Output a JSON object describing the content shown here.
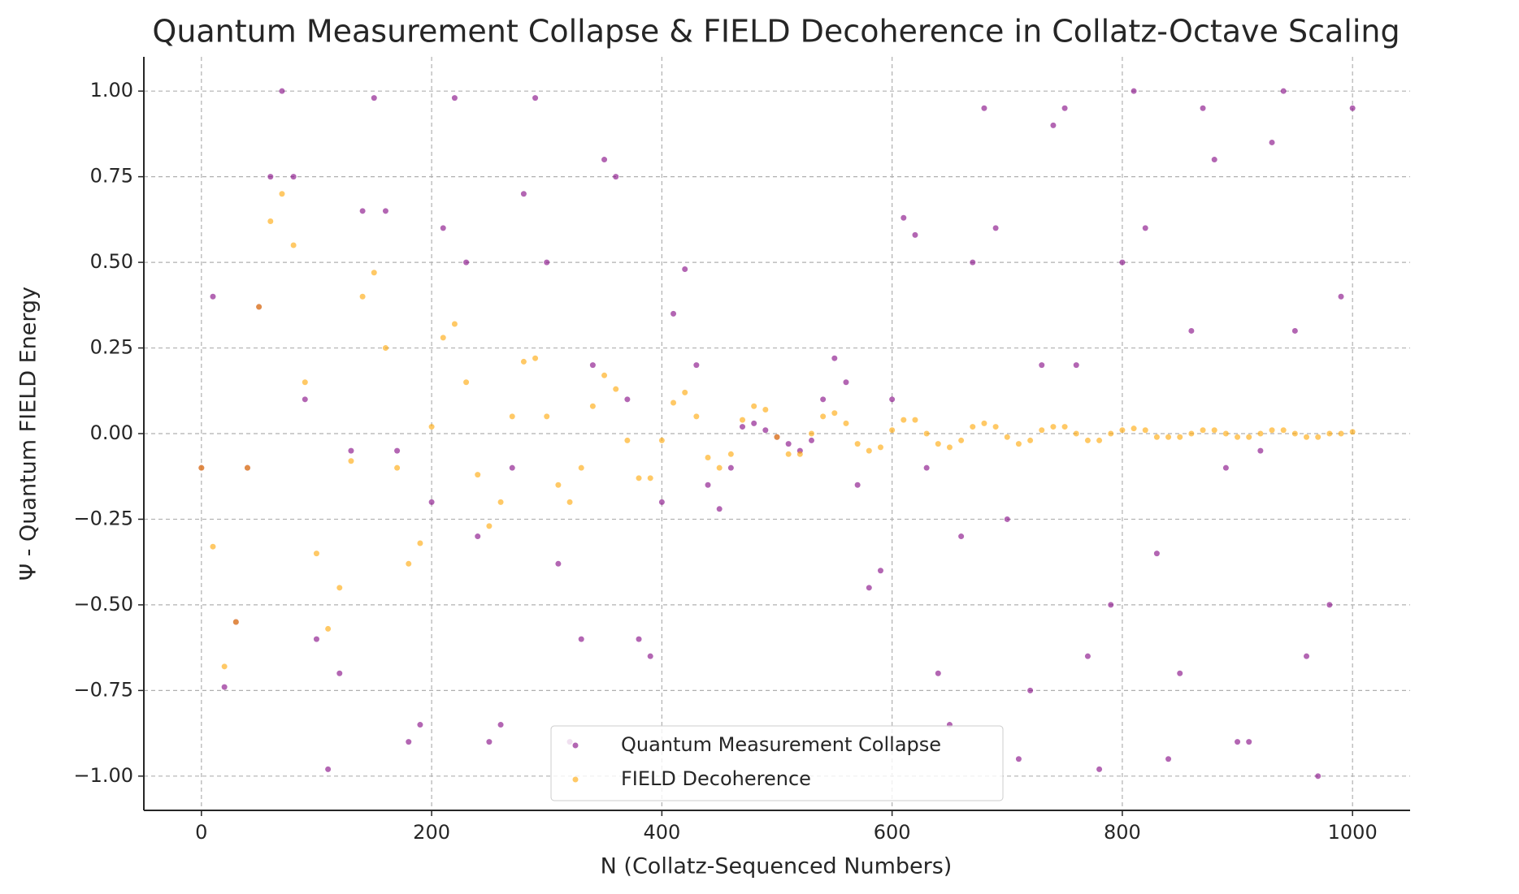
{
  "chart_data": {
    "type": "scatter",
    "title": "Quantum Measurement Collapse & FIELD Decoherence in Collatz-Octave Scaling",
    "x_label": "N (Collatz-Sequenced Numbers)",
    "y_label": "Ψ - Quantum FIELD Energy",
    "x": [
      0,
      10,
      20,
      30,
      40,
      50,
      60,
      70,
      80,
      90,
      100,
      110,
      120,
      130,
      140,
      150,
      160,
      170,
      180,
      190,
      200,
      210,
      220,
      230,
      240,
      250,
      260,
      270,
      280,
      290,
      300,
      310,
      320,
      330,
      340,
      350,
      360,
      370,
      380,
      390,
      400,
      410,
      420,
      430,
      440,
      450,
      460,
      470,
      480,
      490,
      500,
      510,
      520,
      530,
      540,
      550,
      560,
      570,
      580,
      590,
      600,
      610,
      620,
      630,
      640,
      650,
      660,
      670,
      680,
      690,
      700,
      710,
      720,
      730,
      740,
      750,
      760,
      770,
      780,
      790,
      800,
      810,
      820,
      830,
      840,
      850,
      860,
      870,
      880,
      890,
      900,
      910,
      920,
      930,
      940,
      950,
      960,
      970,
      980,
      990,
      1000
    ],
    "series": [
      {
        "name": "Quantum Measurement Collapse",
        "color": "#800080",
        "values": [
          -0.1,
          0.4,
          -0.74,
          -0.55,
          -0.1,
          0.37,
          0.75,
          1.0,
          0.75,
          0.1,
          -0.6,
          -0.98,
          -0.7,
          -0.05,
          0.65,
          0.98,
          0.65,
          -0.05,
          -0.9,
          -0.85,
          -0.2,
          0.6,
          0.98,
          0.5,
          -0.3,
          -0.9,
          -0.85,
          -0.1,
          0.7,
          0.98,
          0.5,
          -0.38,
          -0.9,
          -0.6,
          0.2,
          0.8,
          0.75,
          0.1,
          -0.6,
          -0.65,
          -0.2,
          0.35,
          0.48,
          0.2,
          -0.15,
          -0.22,
          -0.1,
          0.02,
          0.03,
          0.01,
          -0.01,
          -0.03,
          -0.05,
          -0.02,
          0.1,
          0.22,
          0.15,
          -0.15,
          -0.45,
          -0.4,
          0.1,
          0.63,
          0.58,
          -0.1,
          -0.7,
          -0.85,
          -0.3,
          0.5,
          0.95,
          0.6,
          -0.25,
          -0.95,
          -0.75,
          0.2,
          0.9,
          0.95,
          0.2,
          -0.65,
          -0.98,
          -0.5,
          0.5,
          1.0,
          0.6,
          -0.35,
          -0.95,
          -0.7,
          0.3,
          0.95,
          0.8,
          -0.1,
          -0.9,
          -0.9,
          -0.05,
          0.85,
          1.0,
          0.3,
          -0.65,
          -1.0,
          -0.5,
          0.4,
          0.95
        ]
      },
      {
        "name": "FIELD Decoherence",
        "color": "#ffa500",
        "values": [
          -0.1,
          -0.33,
          -0.68,
          -0.55,
          -0.1,
          0.37,
          0.62,
          0.7,
          0.55,
          0.15,
          -0.35,
          -0.57,
          -0.45,
          -0.08,
          0.4,
          0.47,
          0.25,
          -0.1,
          -0.38,
          -0.32,
          0.02,
          0.28,
          0.32,
          0.15,
          -0.12,
          -0.27,
          -0.2,
          0.05,
          0.21,
          0.22,
          0.05,
          -0.15,
          -0.2,
          -0.1,
          0.08,
          0.17,
          0.13,
          -0.02,
          -0.13,
          -0.13,
          -0.02,
          0.09,
          0.12,
          0.05,
          -0.07,
          -0.1,
          -0.06,
          0.04,
          0.08,
          0.07,
          -0.01,
          -0.06,
          -0.06,
          0.0,
          0.05,
          0.06,
          0.03,
          -0.03,
          -0.05,
          -0.04,
          0.01,
          0.04,
          0.04,
          0.0,
          -0.03,
          -0.04,
          -0.02,
          0.02,
          0.03,
          0.02,
          -0.01,
          -0.03,
          -0.02,
          0.01,
          0.02,
          0.02,
          0.0,
          -0.02,
          -0.02,
          0.0,
          0.01,
          0.015,
          0.01,
          -0.01,
          -0.01,
          -0.01,
          0.0,
          0.01,
          0.01,
          0.0,
          -0.01,
          -0.01,
          0.0,
          0.01,
          0.01,
          0.0,
          -0.01,
          -0.01,
          0.0,
          0.0,
          0.005
        ]
      }
    ],
    "xlim": [
      -50,
      1050
    ],
    "ylim": [
      -1.1,
      1.1
    ],
    "xticks": [
      0,
      200,
      400,
      600,
      800,
      1000
    ],
    "yticks": [
      {
        "value": -1,
        "label": "−1.00"
      },
      {
        "value": -0.75,
        "label": "−0.75"
      },
      {
        "value": -0.5,
        "label": "−0.50"
      },
      {
        "value": -0.25,
        "label": "−0.25"
      },
      {
        "value": 0,
        "label": "0.00"
      },
      {
        "value": 0.25,
        "label": "0.25"
      },
      {
        "value": 0.5,
        "label": "0.50"
      },
      {
        "value": 0.75,
        "label": "0.75"
      },
      {
        "value": 1,
        "label": "1.00"
      }
    ],
    "grid": true,
    "legend": "lower center"
  }
}
